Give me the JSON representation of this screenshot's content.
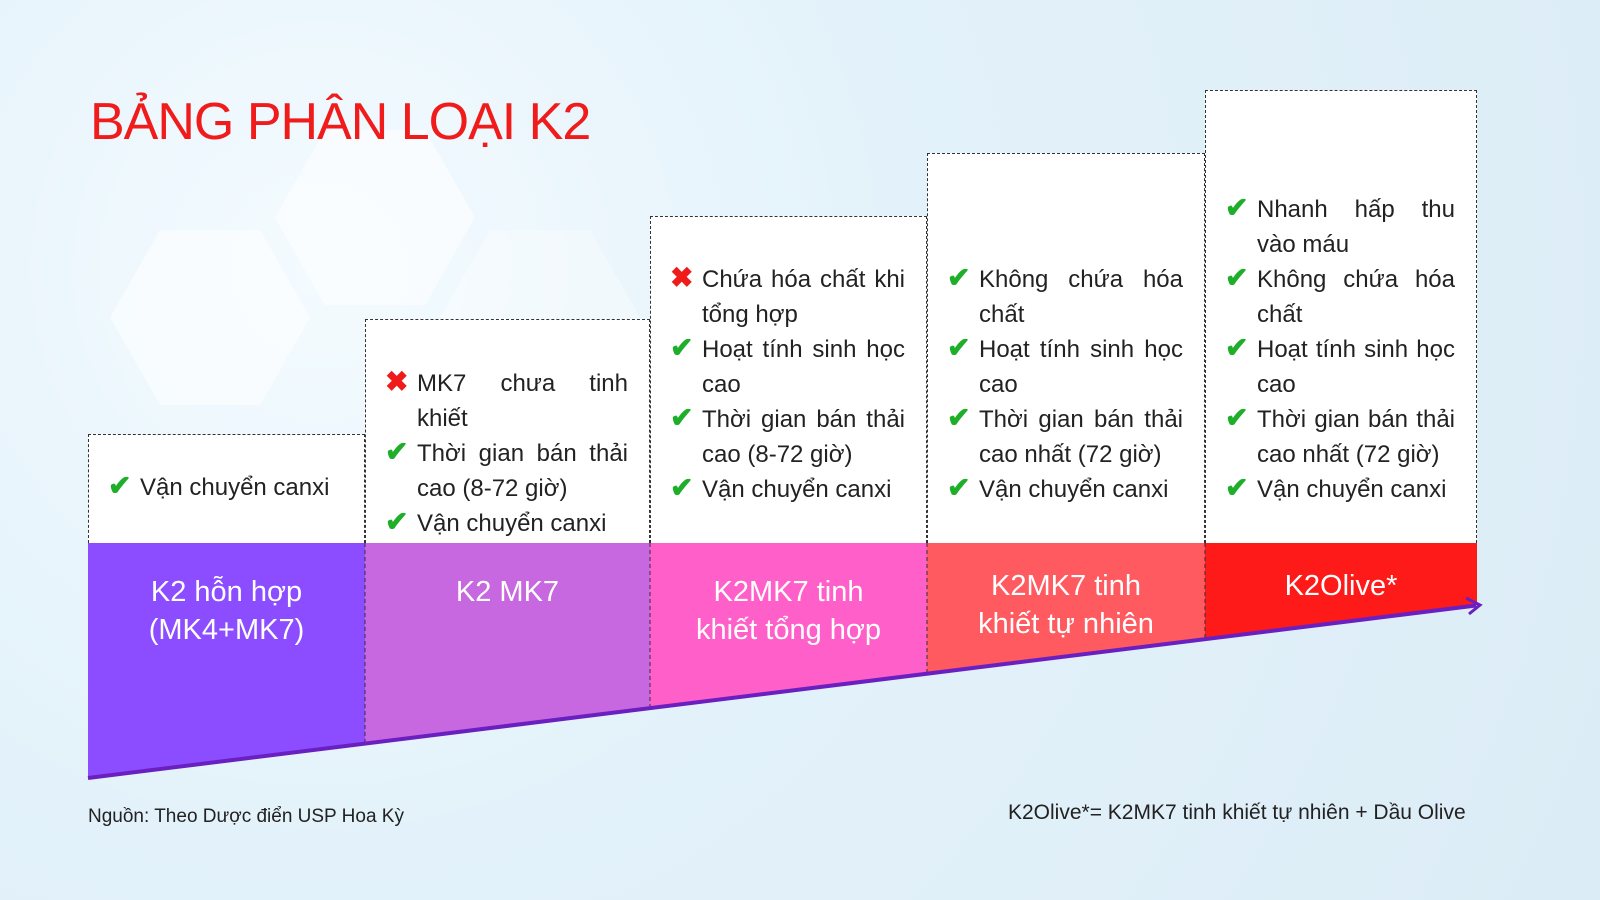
{
  "title": "BẢNG PHÂN LOẠI K2",
  "colors": {
    "col1": "#8b4dff",
    "col2": "#c868e0",
    "col3": "#ff5fc8",
    "col4": "#ff5a5f",
    "col5": "#ff1a1a",
    "arrow": "#6a1fc0",
    "check": "#1fae2a",
    "cross": "#ef1b1b"
  },
  "columns": [
    {
      "label": "K2 hỗn hợp (MK4+MK7)",
      "items": [
        {
          "icon": "check",
          "text": "Vận chuyển canxi"
        }
      ]
    },
    {
      "label": "K2 MK7",
      "items": [
        {
          "icon": "cross",
          "text": "MK7 chưa tinh khiết"
        },
        {
          "icon": "check",
          "text": "Thời gian bán thải cao (8-72 giờ)"
        },
        {
          "icon": "check",
          "text": "Vận chuyển canxi"
        }
      ]
    },
    {
      "label": "K2MK7 tinh khiết tổng hợp",
      "items": [
        {
          "icon": "cross",
          "text": "Chứa hóa chất khi tổng hợp"
        },
        {
          "icon": "check",
          "text": "Hoạt tính sinh học cao"
        },
        {
          "icon": "check",
          "text": "Thời gian bán thải cao (8-72 giờ)"
        },
        {
          "icon": "check",
          "text": "Vận chuyển canxi"
        }
      ]
    },
    {
      "label": "K2MK7 tinh khiết tự nhiên",
      "items": [
        {
          "icon": "check",
          "text": "Không chứa hóa chất"
        },
        {
          "icon": "check",
          "text": "Hoạt tính sinh học cao"
        },
        {
          "icon": "check",
          "text": "Thời gian bán thải cao nhất (72 giờ)"
        },
        {
          "icon": "check",
          "text": "Vận chuyển canxi"
        }
      ]
    },
    {
      "label": "K2Olive*",
      "items": [
        {
          "icon": "check",
          "text": "Nhanh hấp thu vào máu"
        },
        {
          "icon": "check",
          "text": "Không chứa hóa chất"
        },
        {
          "icon": "check",
          "text": "Hoạt tính sinh học cao"
        },
        {
          "icon": "check",
          "text": "Thời gian bán thải cao nhất (72 giờ)"
        },
        {
          "icon": "check",
          "text": "Vận chuyển canxi"
        }
      ]
    }
  ],
  "source": "Nguồn: Theo Dược điển USP Hoa Kỳ",
  "footnote": "K2Olive*= K2MK7 tinh khiết tự nhiên + Dầu Olive"
}
